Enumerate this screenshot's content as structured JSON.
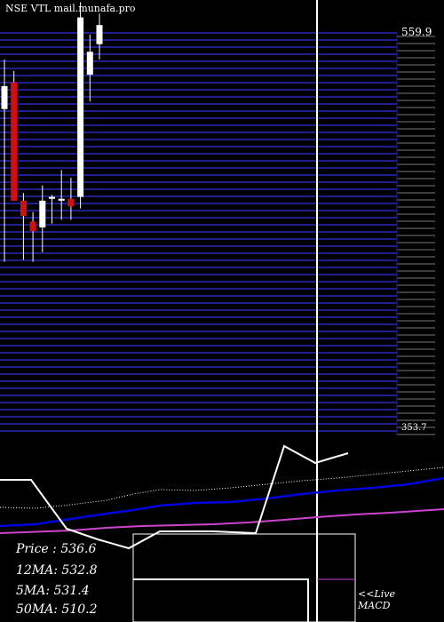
{
  "header": {
    "title": "NSE VTL mail.munafa.pro"
  },
  "stats": [
    {
      "label": "Price  ",
      "value": ": 536.6"
    },
    {
      "label": "12MA",
      "value": ": 532.8"
    },
    {
      "label": "5MA",
      "value": ": 531.4"
    },
    {
      "label": "50MA",
      "value": ": 510.2"
    }
  ],
  "macd": {
    "line1": "<<Live",
    "line2": "MACD"
  },
  "colors": {
    "background": "#000000",
    "grid": "#1e1e8c",
    "up_candle": "#ffffff",
    "down_candle": "#cc1111",
    "ma_fast": "#0000dd",
    "ma_slow": "#cc44cc",
    "price_line": "#ffffff"
  },
  "chart_data": {
    "type": "candlestick",
    "price_axis": {
      "top_label": "559.9",
      "bottom_label": "353.7",
      "range": [
        353.7,
        559.9
      ]
    },
    "candles": [
      {
        "open": 532,
        "high": 546,
        "low": 440,
        "close": 520,
        "dir": "up"
      },
      {
        "open": 534,
        "high": 540,
        "low": 472,
        "close": 472,
        "dir": "down"
      },
      {
        "open": 472,
        "high": 476,
        "low": 441,
        "close": 464,
        "dir": "down"
      },
      {
        "open": 461,
        "high": 466,
        "low": 440,
        "close": 456,
        "dir": "down"
      },
      {
        "open": 458,
        "high": 480,
        "low": 445,
        "close": 472,
        "dir": "up"
      },
      {
        "open": 473,
        "high": 475,
        "low": 460,
        "close": 474,
        "dir": "up"
      },
      {
        "open": 472,
        "high": 488,
        "low": 462,
        "close": 473,
        "dir": "up"
      },
      {
        "open": 473,
        "high": 484,
        "low": 462,
        "close": 469,
        "dir": "down"
      },
      {
        "open": 474,
        "high": 576,
        "low": 468,
        "close": 568,
        "dir": "up"
      },
      {
        "open": 550,
        "high": 559,
        "low": 524,
        "close": 538,
        "dir": "up"
      },
      {
        "open": 554,
        "high": 570,
        "low": 546,
        "close": 564,
        "dir": "up"
      }
    ]
  }
}
